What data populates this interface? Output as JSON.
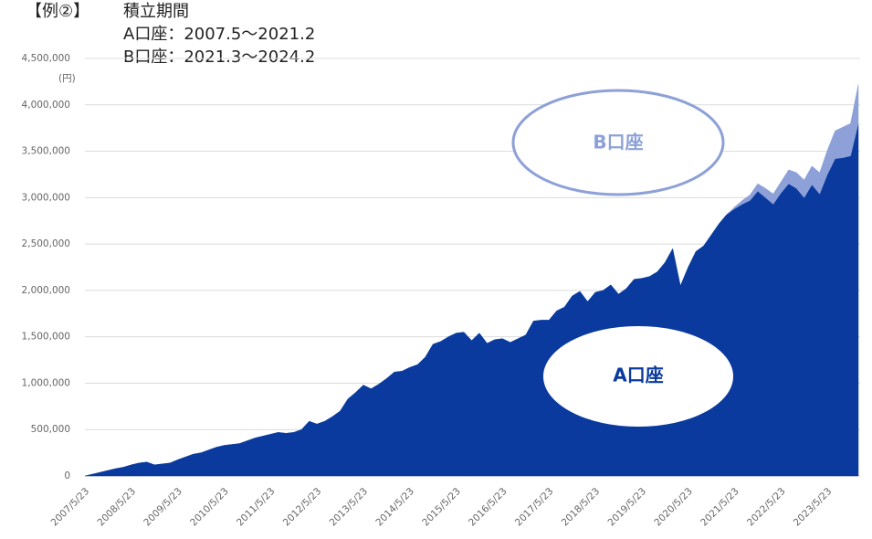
{
  "chart_data": {
    "type": "area",
    "stacked": true,
    "title": "【例②】",
    "subtitle_lines": [
      "積立期間",
      "A口座：2007.5～2021.2",
      "B口座：2021.3～2024.2"
    ],
    "ylabel": "(円)",
    "annotations": [
      {
        "text": "B口座"
      },
      {
        "text": "A口座"
      }
    ],
    "grid": true,
    "ylim": [
      0,
      4500000
    ],
    "yticks": [
      0,
      {
        "value": 500000,
        "label": "500,000"
      },
      {
        "value": 1000000,
        "label": "1,000,000"
      },
      {
        "value": 1500000,
        "label": "1,500,000"
      },
      {
        "value": 2000000,
        "label": "2,000,000"
      },
      {
        "value": 2500000,
        "label": "2,500,000"
      },
      {
        "value": 3000000,
        "label": "3,000,000"
      },
      {
        "value": 3500000,
        "label": "3,500,000"
      },
      {
        "value": 4000000,
        "label": "4,000,000"
      },
      {
        "value": 4500000,
        "label": "4,500,000"
      }
    ],
    "categories": [
      "2007/5/23",
      null,
      null,
      null,
      null,
      null,
      "2008/5/23",
      null,
      null,
      null,
      null,
      null,
      "2009/5/23",
      null,
      null,
      null,
      null,
      null,
      "2010/5/23",
      null,
      null,
      null,
      null,
      null,
      "2011/5/23",
      null,
      null,
      null,
      null,
      null,
      "2012/5/23",
      null,
      null,
      null,
      null,
      null,
      "2013/5/23",
      null,
      null,
      null,
      null,
      null,
      "2014/5/23",
      null,
      null,
      null,
      null,
      null,
      "2015/5/23",
      null,
      null,
      null,
      null,
      null,
      "2016/5/23",
      null,
      null,
      null,
      null,
      null,
      "2017/5/23",
      null,
      null,
      null,
      null,
      null,
      "2018/5/23",
      null,
      null,
      null,
      null,
      null,
      "2019/5/23",
      null,
      null,
      null,
      null,
      null,
      "2020/5/23",
      null,
      null,
      null,
      null,
      null,
      "2021/5/23",
      null,
      null,
      null,
      null,
      null,
      "2022/5/23",
      null,
      null,
      null,
      null,
      null,
      "2023/5/23",
      null,
      null,
      null,
      null
    ],
    "series": [
      {
        "name": "A口座",
        "color": "#0a3a9e",
        "values": [
          0,
          20000,
          40000,
          60000,
          80000,
          95000,
          120000,
          140000,
          150000,
          120000,
          130000,
          140000,
          175000,
          205000,
          235000,
          250000,
          280000,
          310000,
          330000,
          340000,
          350000,
          380000,
          410000,
          430000,
          450000,
          470000,
          460000,
          470000,
          500000,
          590000,
          560000,
          590000,
          640000,
          700000,
          830000,
          900000,
          980000,
          940000,
          990000,
          1050000,
          1120000,
          1130000,
          1170000,
          1200000,
          1280000,
          1420000,
          1450000,
          1500000,
          1540000,
          1550000,
          1460000,
          1540000,
          1430000,
          1470000,
          1480000,
          1440000,
          1480000,
          1520000,
          1670000,
          1680000,
          1680000,
          1780000,
          1820000,
          1940000,
          1990000,
          1880000,
          1980000,
          2000000,
          2060000,
          1960000,
          2020000,
          2120000,
          2130000,
          2150000,
          2200000,
          2300000,
          2450000,
          2050000,
          2250000,
          2420000,
          2480000,
          2600000,
          2720000,
          2820000,
          2880000,
          2930000,
          2970000,
          3070000,
          3000000,
          2930000,
          3050000,
          3150000,
          3100000,
          3000000,
          3140000,
          3040000,
          3250000,
          3420000,
          3430000,
          3450000,
          3800000
        ]
      },
      {
        "name": "B口座",
        "color": "#8da1d8",
        "values": [
          null,
          null,
          null,
          null,
          null,
          null,
          null,
          null,
          null,
          null,
          null,
          null,
          null,
          null,
          null,
          null,
          null,
          null,
          null,
          null,
          null,
          null,
          null,
          null,
          null,
          null,
          null,
          null,
          null,
          null,
          null,
          null,
          null,
          null,
          null,
          null,
          null,
          null,
          null,
          null,
          null,
          null,
          null,
          null,
          null,
          null,
          null,
          null,
          null,
          null,
          null,
          null,
          null,
          null,
          null,
          null,
          null,
          null,
          null,
          null,
          null,
          null,
          null,
          null,
          null,
          null,
          null,
          null,
          null,
          null,
          null,
          null,
          null,
          null,
          null,
          null,
          null,
          null,
          null,
          null,
          null,
          null,
          null,
          0,
          20000,
          40000,
          60000,
          80000,
          100000,
          110000,
          120000,
          150000,
          170000,
          190000,
          200000,
          230000,
          260000,
          300000,
          330000,
          350000,
          420000
        ]
      }
    ]
  }
}
